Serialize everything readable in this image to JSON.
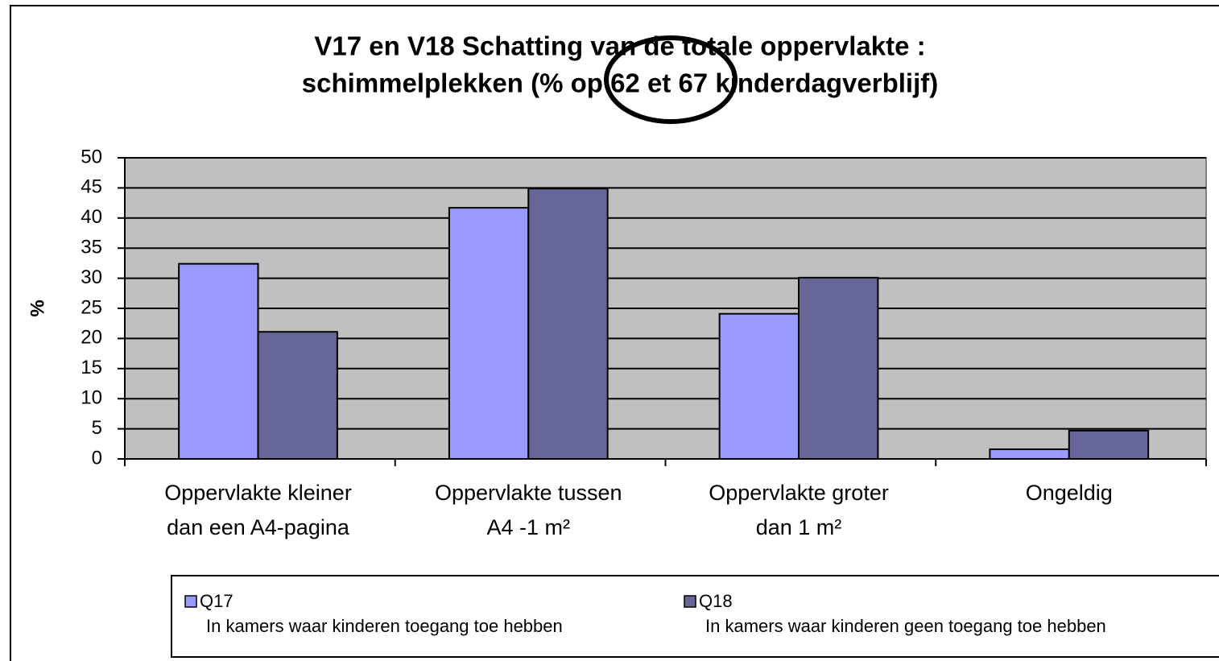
{
  "chart_data": {
    "type": "bar",
    "title": [
      "V17  en  V18  Schatting van de totale oppervlakte :",
      "schimmelplekken (%  op 62 et 67 kinderdagverblijf)"
    ],
    "y_label": "%",
    "categories": [
      [
        "Oppervlakte kleiner",
        "dan een A4-pagina"
      ],
      [
        "Oppervlakte tussen",
        "A4 -1 m²"
      ],
      [
        "Oppervlakte groter",
        "dan 1 m²"
      ],
      [
        "Ongeldig"
      ]
    ],
    "series": [
      {
        "name": "Q17",
        "description": "In kamers waar kinderen toegang toe hebben",
        "color": "#9999ff",
        "values": [
          32.4,
          41.7,
          24.1,
          1.6
        ]
      },
      {
        "name": "Q18",
        "description": "In kamers waar kinderen geen toegang toe hebben",
        "color": "#666699",
        "values": [
          21.1,
          44.9,
          30.1,
          4.7
        ]
      }
    ],
    "ylim": [
      0,
      50
    ],
    "yticks": [
      0,
      5,
      10,
      15,
      20,
      25,
      30,
      35,
      40,
      45,
      50
    ],
    "grid": true,
    "plot_background": "#c0c0c0"
  }
}
